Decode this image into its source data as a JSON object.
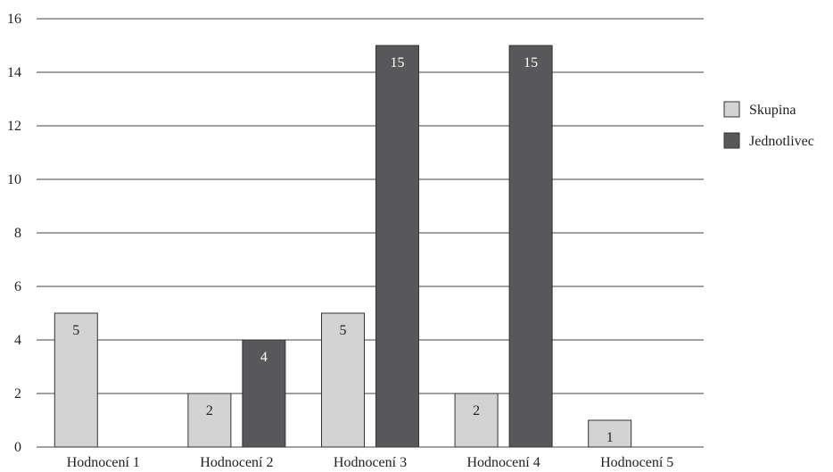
{
  "chart_data": {
    "type": "bar",
    "categories": [
      "Hodnocení 1",
      "Hodnocení 2",
      "Hodnocení 3",
      "Hodnocení 4",
      "Hodnocení 5"
    ],
    "series": [
      {
        "name": "Skupina",
        "values": [
          5,
          2,
          5,
          2,
          1
        ],
        "color": "#d3d3d3",
        "label_color": "#222222"
      },
      {
        "name": "Jednotlivec",
        "values": [
          0,
          4,
          15,
          15,
          0
        ],
        "color": "#58585a",
        "label_color": "#ffffff"
      }
    ],
    "yticks": [
      "0",
      "2",
      "4",
      "6",
      "8",
      "10",
      "12",
      "14",
      "16"
    ],
    "ylim": [
      0,
      16
    ],
    "grid": true,
    "legend_position": "right",
    "title": "",
    "xlabel": "",
    "ylabel": ""
  }
}
